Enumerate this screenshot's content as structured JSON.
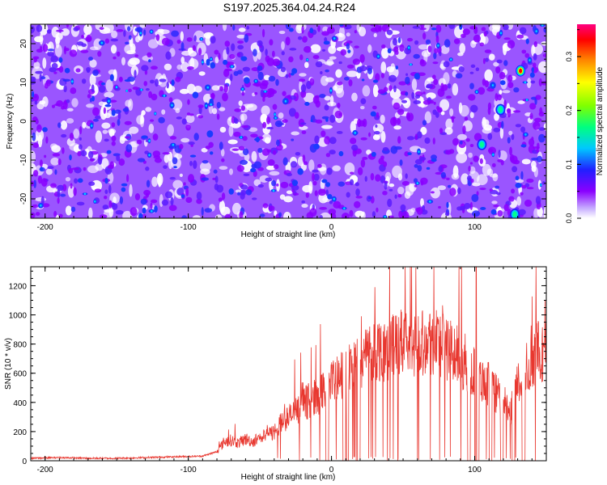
{
  "title": "S197.2025.364.04.24.R24",
  "colors": {
    "line": "#e8372f",
    "axis": "#000000",
    "spectrogram_bg": "#8a3bff",
    "colormap": [
      "#ffffff",
      "#8a00ff",
      "#2020ff",
      "#00c8ff",
      "#00ff80",
      "#80ff00",
      "#ffff00",
      "#ff8000",
      "#ff0000",
      "#ff00a0"
    ]
  },
  "chart_data": [
    {
      "type": "heatmap",
      "xlabel": "Height of straight line (km)",
      "ylabel": "Frequency (Hz)",
      "xlim": [
        -210,
        150
      ],
      "ylim": [
        -25,
        25
      ],
      "xticks": [
        -200,
        -100,
        0,
        100
      ],
      "yticks": [
        -20,
        -10,
        0,
        10,
        20
      ],
      "colorbar": {
        "label": "Normalized spectral amplitude",
        "range": [
          0,
          0.36
        ],
        "ticks": [
          "0.0",
          "0.1",
          "0.2",
          "0.3"
        ]
      },
      "hotspots": [
        {
          "x": 132,
          "y": 13,
          "value": 0.33
        },
        {
          "x": 128,
          "y": -24,
          "value": 0.12
        },
        {
          "x": 118,
          "y": 3,
          "value": 0.1
        },
        {
          "x": 105,
          "y": -6,
          "value": 0.09
        }
      ]
    },
    {
      "type": "line",
      "xlabel": "Height of straight line (km)",
      "ylabel": "SNR (10 * v/v)",
      "xlim": [
        -210,
        150
      ],
      "ylim": [
        0,
        1330
      ],
      "xticks": [
        -200,
        -100,
        0,
        100
      ],
      "yticks": [
        0,
        200,
        400,
        600,
        800,
        1000,
        1200
      ],
      "series": [
        {
          "x": [
            -210,
            -190,
            -170,
            -150,
            -130,
            -110,
            -90,
            -80,
            -75,
            -70,
            -65,
            -60,
            -55,
            -50,
            -45,
            -40,
            -35,
            -30,
            -25,
            -20,
            -15,
            -10,
            -5,
            0,
            5,
            10,
            15,
            20,
            25,
            30,
            35,
            40,
            45,
            50,
            55,
            60,
            65,
            70,
            75,
            80,
            85,
            90,
            95,
            100,
            105,
            110,
            115,
            120,
            125,
            130,
            135,
            140,
            145,
            150
          ],
          "y": [
            15,
            20,
            15,
            15,
            20,
            25,
            30,
            60,
            130,
            140,
            120,
            150,
            130,
            160,
            170,
            200,
            260,
            300,
            330,
            380,
            420,
            440,
            480,
            520,
            560,
            600,
            640,
            680,
            740,
            760,
            770,
            780,
            790,
            800,
            810,
            820,
            820,
            830,
            820,
            780,
            740,
            700,
            660,
            600,
            560,
            520,
            460,
            400,
            350,
            520,
            600,
            700,
            760,
            740
          ]
        }
      ]
    }
  ]
}
